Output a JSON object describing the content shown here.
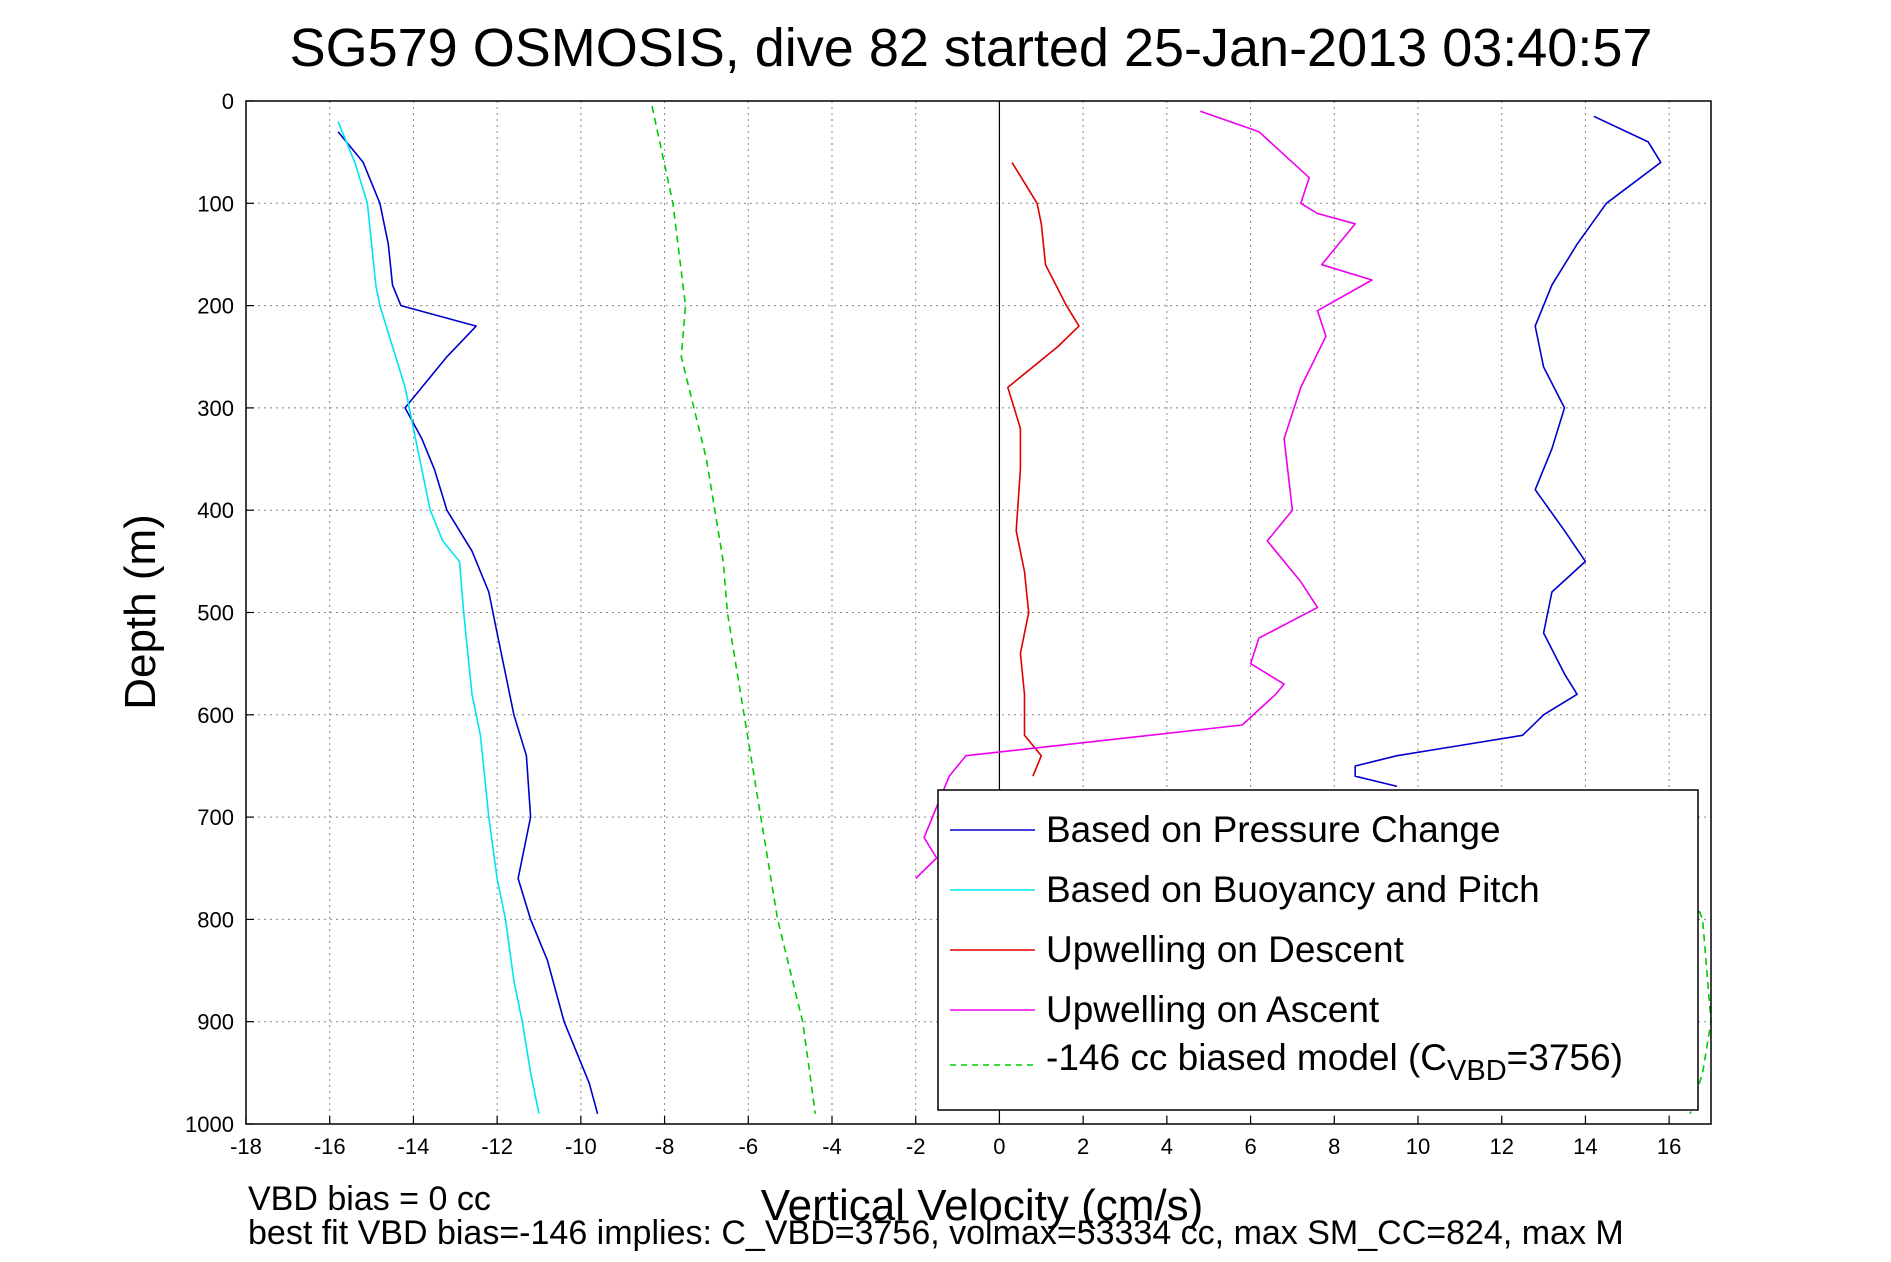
{
  "chart_data": {
    "type": "line",
    "title": "SG579 OSMOSIS, dive 82 started 25-Jan-2013 03:40:57",
    "xlabel": "Vertical Velocity (cm/s)",
    "ylabel": "Depth (m)",
    "xlim": [
      -18,
      17
    ],
    "ylim": [
      0,
      1000
    ],
    "y_reversed": true,
    "grid": true,
    "xticks": [
      "-18",
      "-16",
      "-14",
      "-12",
      "-10",
      "-8",
      "-6",
      "-4",
      "-2",
      "0",
      "2",
      "4",
      "6",
      "8",
      "10",
      "12",
      "14",
      "16"
    ],
    "yticks": [
      "0",
      "100",
      "200",
      "300",
      "400",
      "500",
      "600",
      "700",
      "800",
      "900",
      "1000"
    ],
    "legend": {
      "location": "bottom-right",
      "entries": [
        {
          "label": "Based on Pressure Change",
          "color": "#0000cc",
          "style": "solid"
        },
        {
          "label": "Based on Buoyancy and Pitch",
          "color": "#00e5ee",
          "style": "solid"
        },
        {
          "label": "Upwelling on Descent",
          "color": "#dd0000",
          "style": "solid"
        },
        {
          "label": "Upwelling on Ascent",
          "color": "#ee00ee",
          "style": "solid"
        },
        {
          "label_prefix": "-146 cc biased model (C",
          "label_sub": "VBD",
          "label_suffix": "=3756)",
          "color": "#00cc00",
          "style": "dashed"
        }
      ]
    },
    "series": [
      {
        "name": "Based on Pressure Change",
        "color": "#0000cc",
        "segment": "descent",
        "x": [
          -15.8,
          -15.2,
          -14.8,
          -14.6,
          -14.5,
          -14.3,
          -12.5,
          -13.2,
          -13.8,
          -14.2,
          -13.8,
          -13.5,
          -13.2,
          -12.6,
          -12.2,
          -12.0,
          -11.8,
          -11.6,
          -11.3,
          -11.2,
          -11.5,
          -11.2,
          -10.8,
          -10.4,
          -9.8,
          -9.6
        ],
        "y": [
          30,
          60,
          100,
          140,
          180,
          200,
          220,
          250,
          280,
          300,
          330,
          360,
          400,
          440,
          480,
          520,
          560,
          600,
          640,
          700,
          760,
          800,
          840,
          900,
          960,
          990
        ]
      },
      {
        "name": "Based on Pressure Change",
        "color": "#0000cc",
        "segment": "ascent",
        "x": [
          14.2,
          15.5,
          15.8,
          14.5,
          13.8,
          13.2,
          12.8,
          13.0,
          13.5,
          13.2,
          12.8,
          13.5,
          14.0,
          13.2,
          13.0,
          13.5,
          13.8,
          13.0,
          12.5,
          11.0,
          9.5,
          8.5,
          8.5,
          9.5
        ],
        "y": [
          15,
          40,
          60,
          100,
          140,
          180,
          220,
          260,
          300,
          340,
          380,
          420,
          450,
          480,
          520,
          560,
          580,
          600,
          620,
          630,
          640,
          650,
          660,
          670
        ]
      },
      {
        "name": "Based on Buoyancy and Pitch",
        "color": "#00e5ee",
        "x": [
          -15.8,
          -15.4,
          -15.1,
          -15.0,
          -14.9,
          -14.8,
          -14.5,
          -14.2,
          -14.0,
          -13.8,
          -13.6,
          -13.3,
          -12.9,
          -12.8,
          -12.7,
          -12.6,
          -12.4,
          -12.3,
          -12.2,
          -12.0,
          -11.8,
          -11.6,
          -11.4,
          -11.2,
          -11.0
        ],
        "y": [
          20,
          60,
          100,
          140,
          180,
          200,
          240,
          280,
          320,
          360,
          400,
          430,
          450,
          500,
          540,
          580,
          620,
          660,
          700,
          760,
          800,
          860,
          900,
          950,
          990
        ]
      },
      {
        "name": "Upwelling on Descent",
        "color": "#dd0000",
        "x": [
          0.3,
          0.9,
          1.0,
          1.1,
          1.6,
          1.9,
          1.4,
          0.2,
          0.5,
          0.5,
          0.4,
          0.6,
          0.7,
          0.5,
          0.6,
          0.6,
          1.0,
          0.8
        ],
        "y": [
          60,
          100,
          120,
          160,
          200,
          220,
          240,
          280,
          320,
          360,
          420,
          460,
          500,
          540,
          580,
          620,
          640,
          660
        ]
      },
      {
        "name": "Upwelling on Ascent",
        "color": "#ee00ee",
        "x": [
          4.8,
          6.2,
          7.4,
          7.2,
          7.6,
          8.5,
          7.7,
          8.9,
          7.6,
          7.8,
          7.2,
          6.8,
          7.0,
          6.4,
          7.2,
          7.6,
          6.2,
          6.0,
          6.8,
          6.6,
          5.8,
          -0.8,
          -1.2,
          -1.8,
          -1.5,
          -2.0
        ],
        "y": [
          10,
          30,
          75,
          100,
          110,
          120,
          160,
          175,
          205,
          230,
          280,
          330,
          400,
          430,
          470,
          495,
          525,
          550,
          570,
          580,
          610,
          640,
          660,
          720,
          740,
          760
        ]
      },
      {
        "name": "-146 cc biased model",
        "color": "#00cc00",
        "style": "dashed",
        "segment": "descent",
        "x": [
          -8.3,
          -7.8,
          -7.5,
          -7.6,
          -7.3,
          -7.0,
          -6.8,
          -6.6,
          -6.5,
          -6.3,
          -6.1,
          -5.9,
          -5.7,
          -5.5,
          -5.3,
          -5.0,
          -4.7,
          -4.4
        ],
        "y": [
          5,
          100,
          200,
          250,
          300,
          350,
          400,
          450,
          500,
          550,
          600,
          650,
          700,
          750,
          800,
          850,
          900,
          990
        ]
      },
      {
        "name": "-146 cc biased model",
        "color": "#00cc00",
        "style": "dashed",
        "segment": "ascent",
        "x": [
          16.5,
          16.8,
          16.9,
          17.0,
          16.8,
          16.5
        ],
        "y": [
          770,
          800,
          850,
          900,
          950,
          990
        ]
      }
    ]
  }
}
